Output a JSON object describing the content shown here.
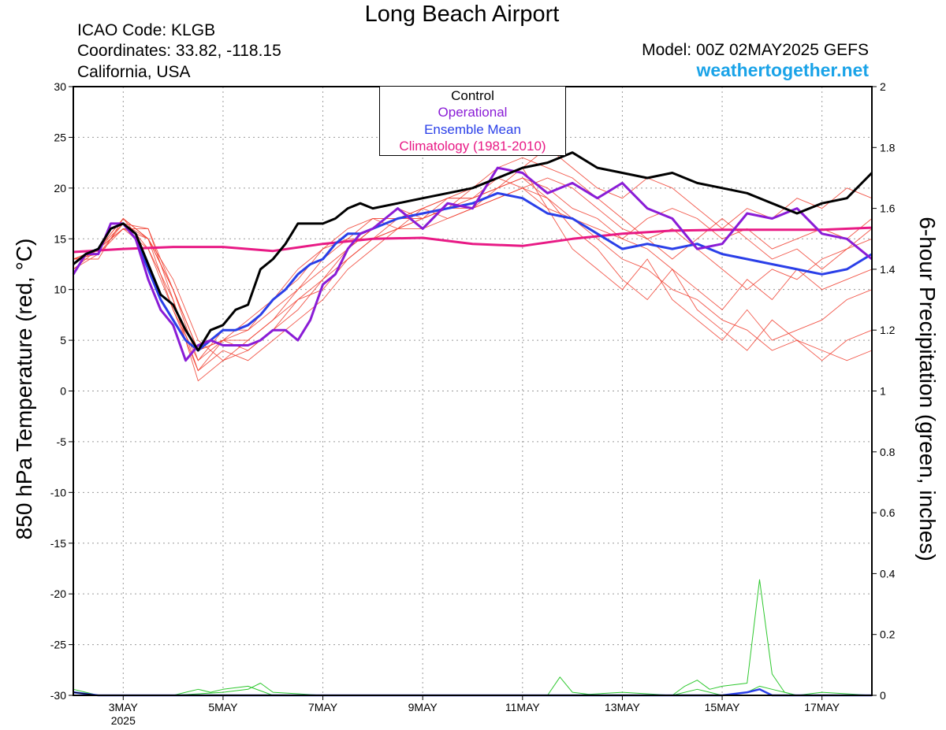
{
  "header": {
    "title": "Long Beach Airport",
    "icao": "ICAO Code: KLGB",
    "coords": "Coordinates: 33.82, -118.15",
    "location": "California, USA",
    "model": "Model: 00Z 02MAY2025 GEFS",
    "site": "weathertogether.net"
  },
  "chart_data": {
    "type": "line",
    "title": "Long Beach Airport",
    "ylabel": "850 hPa Temperature (red, °C)",
    "y2label": "6-hour Precipitation (green, inches)",
    "ylim": [
      -30,
      30
    ],
    "y2lim": [
      0,
      2
    ],
    "yticks": [
      30,
      25,
      20,
      15,
      10,
      5,
      0,
      -5,
      -10,
      -15,
      -20,
      -25,
      -30
    ],
    "y2ticks": [
      "2",
      "1.8",
      "1.6",
      "1.4",
      "1.2",
      "1",
      "0.8",
      "0.6",
      "0.4",
      "0.2",
      "0"
    ],
    "x_start": "2025-05-02 00Z",
    "x_end": "2025-05-18 00Z",
    "x_step_hours": 6,
    "xticks": [
      {
        "label": "3MAY",
        "sub": "2025",
        "day": 3
      },
      {
        "label": "5MAY",
        "day": 5
      },
      {
        "label": "7MAY",
        "day": 7
      },
      {
        "label": "9MAY",
        "day": 9
      },
      {
        "label": "11MAY",
        "day": 11
      },
      {
        "label": "13MAY",
        "day": 13
      },
      {
        "label": "15MAY",
        "day": 15
      },
      {
        "label": "17MAY",
        "day": 17
      }
    ],
    "grid": true,
    "legend_position": "top-center",
    "legend": [
      {
        "name": "Control",
        "color": "#000000"
      },
      {
        "name": "Operational",
        "color": "#8a1cd6"
      },
      {
        "name": "Ensemble Mean",
        "color": "#2a3fe8"
      },
      {
        "name": "Climatology (1981-2010)",
        "color": "#e81a85"
      }
    ],
    "series": [
      {
        "name": "Control",
        "color": "#000000",
        "x_days": [
          2.0,
          2.25,
          2.5,
          2.75,
          3.0,
          3.25,
          3.5,
          3.75,
          4.0,
          4.25,
          4.5,
          4.75,
          5.0,
          5.25,
          5.5,
          5.75,
          6.0,
          6.25,
          6.5,
          6.75,
          7.0,
          7.25,
          7.5,
          7.75,
          8.0,
          8.5,
          9.0,
          9.5,
          10.0,
          10.5,
          11.0,
          11.5,
          12.0,
          12.5,
          13.0,
          13.5,
          14.0,
          14.5,
          15.0,
          15.5,
          16.0,
          16.5,
          17.0,
          17.5,
          18.0
        ],
        "values": [
          12.5,
          13.5,
          14.0,
          16.0,
          16.5,
          15.5,
          12.5,
          9.5,
          8.5,
          6.0,
          4.0,
          6.0,
          6.5,
          8.0,
          8.5,
          12.0,
          13.0,
          14.5,
          16.5,
          16.5,
          16.5,
          17.0,
          18.0,
          18.5,
          18.0,
          18.5,
          19.0,
          19.5,
          20.0,
          21.0,
          22.0,
          22.5,
          23.5,
          22.0,
          21.5,
          21.0,
          21.5,
          20.5,
          20.0,
          19.5,
          18.5,
          17.5,
          18.5,
          19.0,
          21.5
        ]
      },
      {
        "name": "Operational",
        "color": "#8a1cd6",
        "x_days": [
          2.0,
          2.25,
          2.5,
          2.75,
          3.0,
          3.25,
          3.5,
          3.75,
          4.0,
          4.25,
          4.5,
          4.75,
          5.0,
          5.25,
          5.5,
          5.75,
          6.0,
          6.25,
          6.5,
          6.75,
          7.0,
          7.25,
          7.5,
          7.75,
          8.0,
          8.5,
          9.0,
          9.5,
          10.0,
          10.5,
          11.0,
          11.5,
          12.0,
          12.5,
          13.0,
          13.5,
          14.0,
          14.5,
          15.0,
          15.5,
          16.0,
          16.5,
          17.0,
          17.5,
          18.0
        ],
        "values": [
          11.5,
          13.5,
          13.5,
          16.5,
          16.5,
          15.0,
          11.0,
          8.0,
          6.5,
          3.0,
          4.5,
          5.0,
          4.5,
          4.5,
          4.5,
          5.0,
          6.0,
          6.0,
          5.0,
          7.0,
          10.5,
          11.5,
          14.0,
          15.5,
          16.0,
          18.0,
          16.0,
          18.5,
          18.0,
          22.0,
          21.5,
          19.5,
          20.5,
          19.0,
          20.5,
          18.0,
          17.0,
          14.0,
          14.5,
          17.5,
          17.0,
          18.0,
          15.5,
          15.0,
          13.0
        ]
      },
      {
        "name": "Ensemble Mean",
        "color": "#2a3fe8",
        "x_days": [
          2.0,
          2.25,
          2.5,
          2.75,
          3.0,
          3.25,
          3.5,
          3.75,
          4.0,
          4.25,
          4.5,
          4.75,
          5.0,
          5.25,
          5.5,
          5.75,
          6.0,
          6.25,
          6.5,
          6.75,
          7.0,
          7.25,
          7.5,
          7.75,
          8.0,
          8.5,
          9.0,
          9.5,
          10.0,
          10.5,
          11.0,
          11.5,
          12.0,
          12.5,
          13.0,
          13.5,
          14.0,
          14.5,
          15.0,
          15.5,
          16.0,
          16.5,
          17.0,
          17.5,
          18.0
        ],
        "values": [
          12.5,
          13.5,
          14.0,
          16.0,
          16.5,
          15.0,
          12.0,
          9.0,
          7.0,
          5.0,
          4.0,
          5.0,
          6.0,
          6.0,
          6.5,
          7.5,
          9.0,
          10.0,
          11.5,
          12.5,
          13.0,
          14.5,
          15.5,
          15.5,
          16.0,
          17.0,
          17.5,
          18.0,
          18.5,
          19.5,
          19.0,
          17.5,
          17.0,
          15.5,
          14.0,
          14.5,
          14.0,
          14.5,
          13.5,
          13.0,
          12.5,
          12.0,
          11.5,
          12.0,
          13.5
        ]
      },
      {
        "name": "Climatology (1981-2010)",
        "color": "#e81a85",
        "x_days": [
          2.0,
          3.0,
          4.0,
          5.0,
          6.0,
          7.0,
          8.0,
          9.0,
          10.0,
          11.0,
          12.0,
          13.0,
          14.0,
          15.0,
          16.0,
          17.0,
          18.0
        ],
        "values": [
          13.7,
          14.0,
          14.2,
          14.2,
          13.8,
          14.5,
          15.0,
          15.1,
          14.5,
          14.3,
          15.0,
          15.5,
          15.8,
          15.9,
          15.9,
          15.9,
          16.1
        ]
      }
    ],
    "members": [
      {
        "x_days": [
          2.0,
          2.5,
          3.0,
          3.5,
          4.0,
          4.5,
          5.0,
          5.5,
          6.0,
          6.5,
          7.0,
          7.5,
          8.0,
          8.5,
          9.0,
          9.5,
          10.0,
          10.5,
          11.0,
          11.5,
          12.0,
          12.5,
          13.0,
          13.5,
          14.0,
          14.5,
          15.0,
          15.5,
          16.0,
          16.5,
          17.0,
          17.5,
          18.0
        ],
        "values": [
          12.5,
          14,
          17,
          14,
          8,
          3,
          5,
          6,
          8,
          10,
          13,
          15,
          15,
          17,
          18,
          19,
          20,
          21,
          22,
          18,
          14,
          12,
          10,
          13,
          9,
          7,
          5,
          8,
          5,
          6,
          7,
          9,
          10
        ]
      },
      {
        "x_days": [
          2.0,
          2.5,
          3.0,
          3.5,
          4.0,
          4.5,
          5.0,
          5.5,
          6.0,
          6.5,
          7.0,
          7.5,
          8.0,
          8.5,
          9.0,
          9.5,
          10.0,
          10.5,
          11.0,
          11.5,
          12.0,
          12.5,
          13.0,
          13.5,
          14.0,
          14.5,
          15.0,
          15.5,
          16.0,
          16.5,
          17.0,
          17.5,
          18.0
        ],
        "values": [
          13,
          13.5,
          16.5,
          15,
          10,
          4,
          5,
          4,
          6,
          9,
          11,
          14,
          16,
          18,
          17,
          19,
          19,
          20,
          21,
          19,
          16,
          14,
          11,
          9,
          12,
          8,
          6,
          4,
          7,
          5,
          3,
          5,
          6
        ]
      },
      {
        "x_days": [
          2.0,
          2.5,
          3.0,
          3.5,
          4.0,
          4.5,
          5.0,
          5.5,
          6.0,
          6.5,
          7.0,
          7.5,
          8.0,
          8.5,
          9.0,
          9.5,
          10.0,
          10.5,
          11.0,
          11.5,
          12.0,
          12.5,
          13.0,
          13.5,
          14.0,
          14.5,
          15.0,
          15.5,
          16.0,
          16.5,
          17.0,
          17.5,
          18.0
        ],
        "values": [
          12,
          14,
          16,
          16,
          9,
          2,
          5,
          7,
          9,
          12,
          14,
          16,
          17,
          16,
          17,
          18,
          20,
          22,
          23,
          22,
          21,
          19,
          17,
          15,
          16,
          14,
          12,
          10,
          12,
          11,
          13,
          14,
          16
        ]
      },
      {
        "x_days": [
          2.0,
          2.5,
          3.0,
          3.5,
          4.0,
          4.5,
          5.0,
          5.5,
          6.0,
          6.5,
          7.0,
          7.5,
          8.0,
          8.5,
          9.0,
          9.5,
          10.0,
          10.5,
          11.0,
          11.5,
          12.0,
          12.5,
          13.0,
          13.5,
          14.0,
          14.5,
          15.0,
          15.5,
          16.0,
          16.5,
          17.0,
          17.5,
          18.0
        ],
        "values": [
          13,
          13,
          17,
          15,
          11,
          5,
          3,
          5,
          7,
          10,
          12,
          14,
          16,
          17,
          18,
          17,
          18,
          20,
          22,
          24,
          22,
          20,
          19,
          21,
          20,
          18,
          16,
          18,
          17,
          19,
          18,
          20,
          19
        ]
      },
      {
        "x_days": [
          2.0,
          2.5,
          3.0,
          3.5,
          4.0,
          4.5,
          5.0,
          5.5,
          6.0,
          6.5,
          7.0,
          7.5,
          8.0,
          8.5,
          9.0,
          9.5,
          10.0,
          10.5,
          11.0,
          11.5,
          12.0,
          12.5,
          13.0,
          13.5,
          14.0,
          14.5,
          15.0,
          15.5,
          16.0,
          16.5,
          17.0,
          17.5,
          18.0
        ],
        "values": [
          12.5,
          14,
          16,
          14,
          9,
          1,
          3,
          4,
          6,
          8,
          11,
          13,
          15,
          16,
          18,
          19,
          19,
          21,
          20,
          18,
          17,
          16,
          15,
          17,
          18,
          17,
          15,
          16,
          14,
          15,
          16,
          15,
          17
        ]
      },
      {
        "x_days": [
          2.0,
          2.5,
          3.0,
          3.5,
          4.0,
          4.5,
          5.0,
          5.5,
          6.0,
          6.5,
          7.0,
          7.5,
          8.0,
          8.5,
          9.0,
          9.5,
          10.0,
          10.5,
          11.0,
          11.5,
          12.0,
          12.5,
          13.0,
          13.5,
          14.0,
          14.5,
          15.0,
          15.5,
          16.0,
          16.5,
          17.0,
          17.5,
          18.0
        ],
        "values": [
          13,
          14,
          17,
          15,
          10,
          3,
          6,
          6,
          9,
          11,
          14,
          15,
          17,
          17,
          17,
          18,
          19,
          20,
          21,
          20,
          18,
          17,
          15,
          14,
          12,
          10,
          8,
          11,
          9,
          12,
          10,
          11,
          12
        ]
      },
      {
        "x_days": [
          2.0,
          2.5,
          3.0,
          3.5,
          4.0,
          4.5,
          5.0,
          5.5,
          6.0,
          6.5,
          7.0,
          7.5,
          8.0,
          8.5,
          9.0,
          9.5,
          10.0,
          10.5,
          11.0,
          11.5,
          12.0,
          12.5,
          13.0,
          13.5,
          14.0,
          14.5,
          15.0,
          15.5,
          16.0,
          16.5,
          17.0,
          17.5,
          18.0
        ],
        "values": [
          12,
          13.5,
          16,
          15,
          8,
          2,
          4,
          3,
          5,
          7,
          9,
          12,
          14,
          16,
          17,
          18,
          18,
          19,
          20,
          21,
          20,
          18,
          16,
          15,
          13,
          15,
          17,
          15,
          13,
          14,
          12,
          14,
          15
        ]
      },
      {
        "x_days": [
          2.0,
          2.5,
          3.0,
          3.5,
          4.0,
          4.5,
          5.0,
          5.5,
          6.0,
          6.5,
          7.0,
          7.5,
          8.0,
          8.5,
          9.0,
          9.5,
          10.0,
          10.5,
          11.0,
          11.5,
          12.0,
          12.5,
          13.0,
          13.5,
          14.0,
          14.5,
          15.0,
          15.5,
          16.0,
          16.5,
          17.0,
          17.5,
          18.0
        ],
        "values": [
          13,
          14,
          16.5,
          16,
          10,
          4,
          5,
          5,
          7,
          9,
          10,
          13,
          15,
          16,
          16,
          17,
          18,
          19,
          20,
          19,
          17,
          15,
          13,
          12,
          10,
          9,
          7,
          6,
          4,
          5,
          4,
          3,
          4
        ]
      }
    ],
    "precip": [
      {
        "name": "ensemble member",
        "color": "#2ec82e",
        "x_days": [
          2.0,
          2.25,
          2.5,
          3.0,
          3.5,
          4.0,
          4.25,
          4.5,
          4.75,
          5.0,
          5.5,
          6.0,
          7.0,
          8.0,
          9.0,
          10.0,
          11.0,
          11.5,
          11.75,
          12.0,
          12.5,
          13.0,
          13.5,
          14.0,
          14.25,
          14.5,
          14.75,
          15.0,
          15.5,
          15.75,
          16.0,
          16.25,
          16.5,
          17.0,
          17.5,
          18.0
        ],
        "values": [
          0.02,
          0.01,
          0.0,
          0.0,
          0.0,
          0.0,
          0.01,
          0.02,
          0.01,
          0.02,
          0.03,
          0.0,
          0.0,
          0.0,
          0.0,
          0.0,
          0.0,
          0.0,
          0.06,
          0.01,
          0.0,
          0.0,
          0.0,
          0.0,
          0.03,
          0.05,
          0.02,
          0.03,
          0.04,
          0.38,
          0.07,
          0.01,
          0.0,
          0.0,
          0.0,
          0.0
        ]
      },
      {
        "name": "ensemble member",
        "color": "#2ec82e",
        "x_days": [
          2.0,
          2.5,
          3.0,
          4.0,
          5.0,
          5.5,
          5.75,
          6.0,
          7.0,
          9.0,
          11.0,
          12.0,
          13.0,
          14.0,
          14.5,
          15.0,
          15.5,
          15.75,
          16.0,
          16.5,
          17.0,
          18.0
        ],
        "values": [
          0.01,
          0.0,
          0.0,
          0.0,
          0.01,
          0.02,
          0.04,
          0.01,
          0.0,
          0.0,
          0.0,
          0.0,
          0.01,
          0.0,
          0.02,
          0.0,
          0.01,
          0.03,
          0.02,
          0.0,
          0.01,
          0.0
        ]
      },
      {
        "name": "Ensemble Mean",
        "color": "#2a3fe8",
        "x_days": [
          2.0,
          2.5,
          3.0,
          4.0,
          5.0,
          6.0,
          7.0,
          9.0,
          11.0,
          12.0,
          13.0,
          14.0,
          14.5,
          15.0,
          15.5,
          15.75,
          16.0,
          17.0,
          18.0
        ],
        "values": [
          0.01,
          0.0,
          0.0,
          0.0,
          0.0,
          0.0,
          0.0,
          0.0,
          0.0,
          0.0,
          0.0,
          0.0,
          0.0,
          0.0,
          0.01,
          0.02,
          0.0,
          0.0,
          0.0
        ]
      },
      {
        "name": "Control",
        "color": "#000000",
        "x_days": [
          2.0,
          2.5,
          18.0
        ],
        "values": [
          0.01,
          0.0,
          0.0
        ]
      }
    ]
  }
}
